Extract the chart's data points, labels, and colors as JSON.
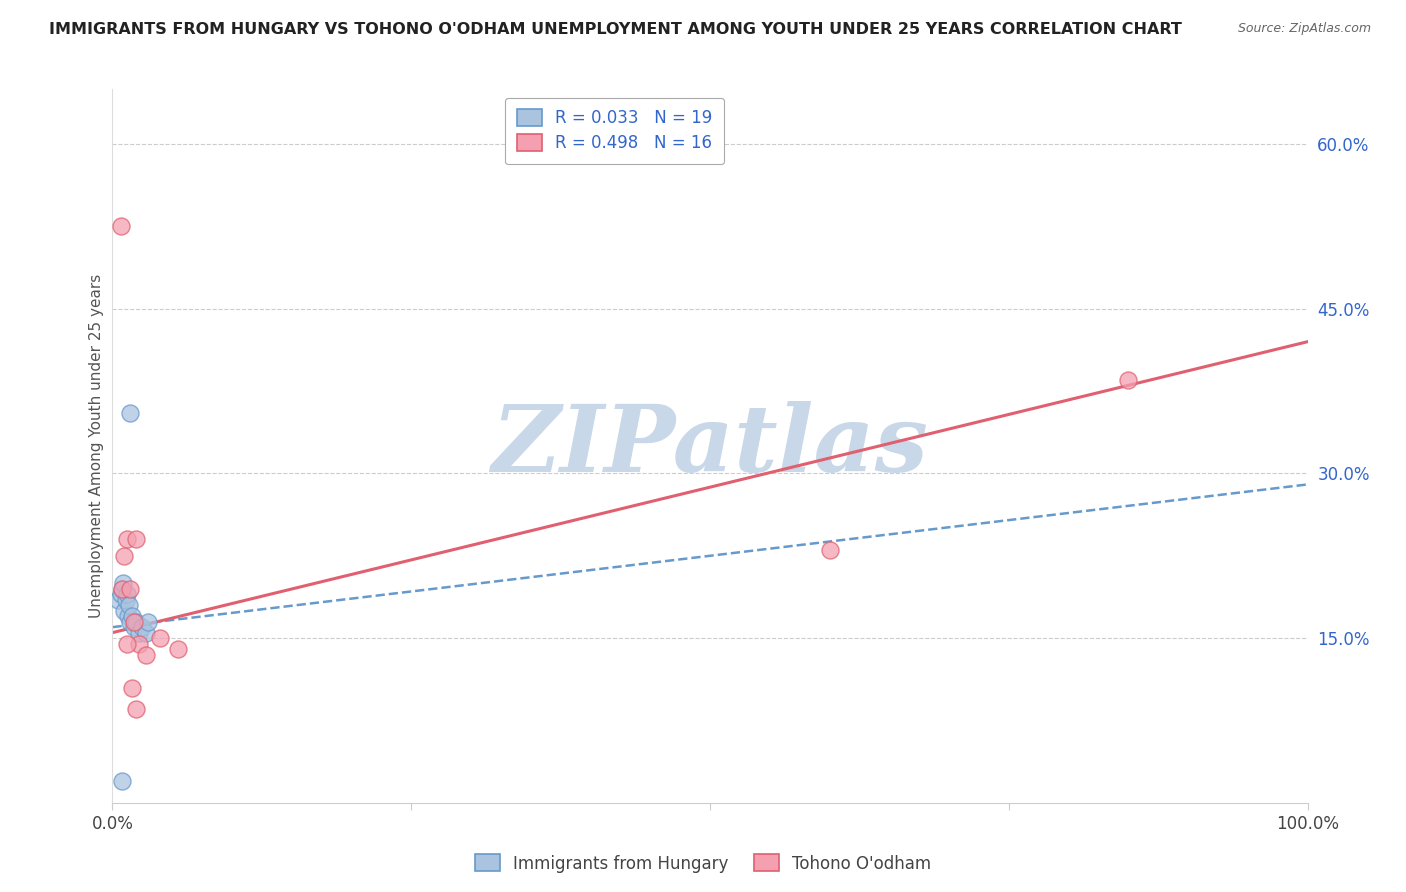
{
  "title": "IMMIGRANTS FROM HUNGARY VS TOHONO O'ODHAM UNEMPLOYMENT AMONG YOUTH UNDER 25 YEARS CORRELATION CHART",
  "source": "Source: ZipAtlas.com",
  "ylabel": "Unemployment Among Youth under 25 years",
  "xlabel": "",
  "xlim": [
    0,
    1
  ],
  "ylim": [
    0,
    0.65
  ],
  "yticks": [
    0.15,
    0.3,
    0.45,
    0.6
  ],
  "ytick_labels": [
    "15.0%",
    "30.0%",
    "45.0%",
    "60.0%"
  ],
  "xticks": [
    0.0,
    0.25,
    0.5,
    0.75,
    1.0
  ],
  "xtick_labels": [
    "0.0%",
    "",
    "",
    "",
    "100.0%"
  ],
  "blue_label": "Immigrants from Hungary",
  "pink_label": "Tohono O'odham",
  "blue_R": "0.033",
  "blue_N": "19",
  "pink_R": "0.498",
  "pink_N": "16",
  "blue_color": "#aac4e0",
  "pink_color": "#f4a0b0",
  "blue_line_color": "#6699cc",
  "pink_line_color": "#e06070",
  "watermark": "ZIPatlas",
  "watermark_color": "#c8d8e8",
  "blue_x": [
    0.005,
    0.007,
    0.008,
    0.009,
    0.01,
    0.011,
    0.012,
    0.013,
    0.014,
    0.015,
    0.016,
    0.018,
    0.02,
    0.022,
    0.025,
    0.028,
    0.03,
    0.015,
    0.008
  ],
  "blue_y": [
    0.185,
    0.19,
    0.195,
    0.2,
    0.175,
    0.185,
    0.19,
    0.17,
    0.18,
    0.165,
    0.17,
    0.16,
    0.165,
    0.155,
    0.16,
    0.155,
    0.165,
    0.355,
    0.02
  ],
  "pink_x": [
    0.007,
    0.008,
    0.01,
    0.012,
    0.015,
    0.018,
    0.02,
    0.022,
    0.028,
    0.04,
    0.055,
    0.6,
    0.85,
    0.012,
    0.016,
    0.02
  ],
  "pink_y": [
    0.525,
    0.195,
    0.225,
    0.24,
    0.195,
    0.165,
    0.24,
    0.145,
    0.135,
    0.15,
    0.14,
    0.23,
    0.385,
    0.145,
    0.105,
    0.085
  ],
  "blue_trend_x": [
    0.0,
    1.0
  ],
  "blue_trend_y": [
    0.16,
    0.29
  ],
  "pink_trend_x": [
    0.0,
    1.0
  ],
  "pink_trend_y": [
    0.155,
    0.42
  ]
}
